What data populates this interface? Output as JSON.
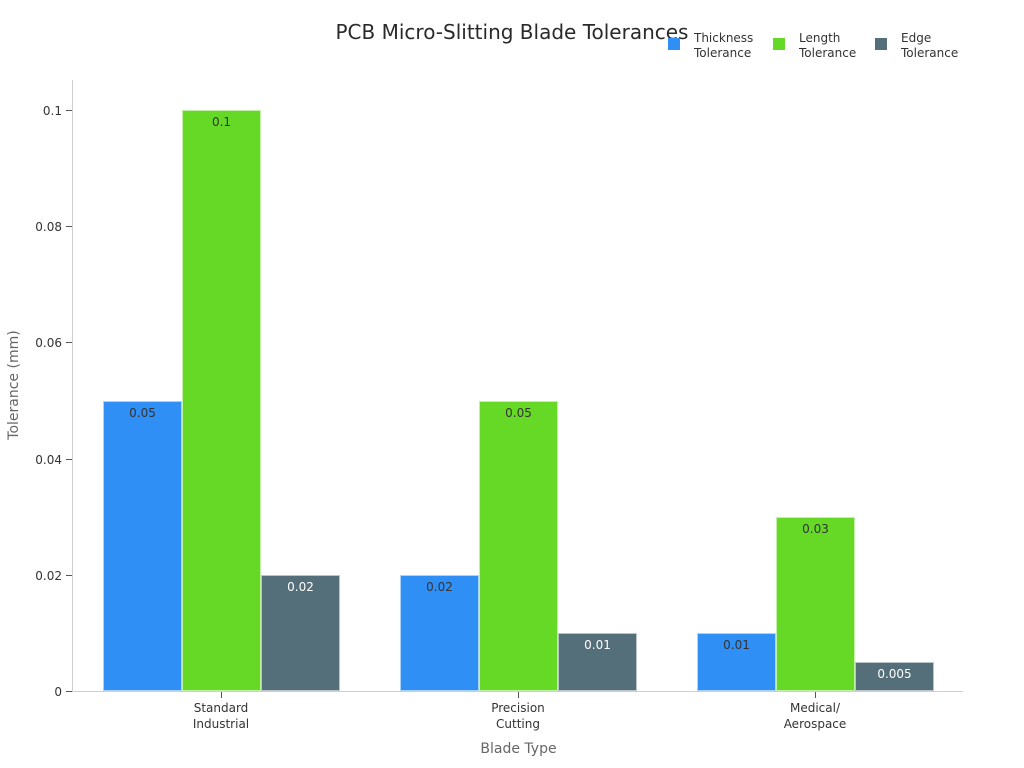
{
  "chart_data": {
    "type": "bar",
    "title": "PCB Micro-Slitting Blade Tolerances",
    "xlabel": "Blade Type",
    "ylabel": "Tolerance (mm)",
    "ylim": [
      0,
      0.1
    ],
    "yticks": [
      "0",
      "0.02",
      "0.04",
      "0.06",
      "0.08",
      "0.1"
    ],
    "categories": [
      "Standard\nIndustrial",
      "Precision\nCutting",
      "Medical/\nAerospace"
    ],
    "series": [
      {
        "name": "Thickness Tolerance",
        "color": "#2f8ff5",
        "values": [
          0.05,
          0.02,
          0.01
        ],
        "labels": [
          "0.05",
          "0.02",
          "0.01"
        ]
      },
      {
        "name": "Length Tolerance",
        "color": "#66d927",
        "values": [
          0.1,
          0.05,
          0.03
        ],
        "labels": [
          "0.1",
          "0.05",
          "0.03"
        ]
      },
      {
        "name": "Edge Tolerance",
        "color": "#546e7a",
        "values": [
          0.02,
          0.01,
          0.005
        ],
        "labels": [
          "0.02",
          "0.01",
          "0.005"
        ]
      }
    ],
    "legend_position": "top-right",
    "grid": false
  },
  "legend": [
    {
      "line1": "Thickness",
      "line2": "Tolerance"
    },
    {
      "line1": "Length",
      "line2": "Tolerance"
    },
    {
      "line1": "Edge",
      "line2": "Tolerance"
    }
  ]
}
